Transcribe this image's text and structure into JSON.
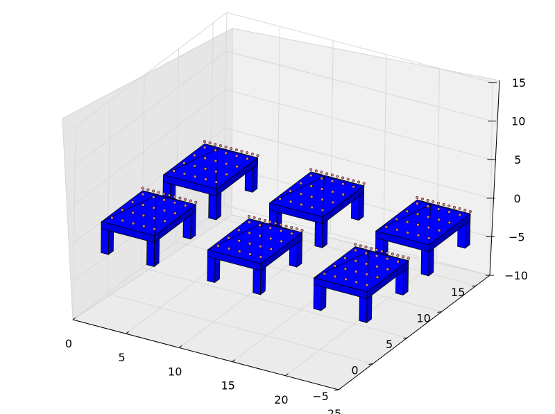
{
  "chart_data": {
    "type": "surface3d",
    "title": "",
    "xlabel": "",
    "ylabel": "",
    "zlabel": "",
    "xlim": [
      0,
      25
    ],
    "ylim": [
      -5,
      17
    ],
    "zlim": [
      -10,
      15
    ],
    "x_ticks": [
      "0",
      "5",
      "10",
      "15",
      "20",
      "25"
    ],
    "y_ticks": [
      "−5",
      "0",
      "5",
      "10",
      "15"
    ],
    "z_ticks": [
      "−10",
      "−5",
      "0",
      "5",
      "10",
      "15"
    ],
    "grid": true,
    "surface_color": "#0000ff",
    "point_color": "#e08080",
    "tables": [
      {
        "x": 2.5,
        "y": 11,
        "z_top": 0,
        "z_leg_bottom": -4
      },
      {
        "x": 2.5,
        "y": 2,
        "z_top": 0,
        "z_leg_bottom": -4
      },
      {
        "x": 12.5,
        "y": 11,
        "z_top": 0,
        "z_leg_bottom": -4
      },
      {
        "x": 12.5,
        "y": 2,
        "z_top": 0,
        "z_leg_bottom": -4
      },
      {
        "x": 22.5,
        "y": 11,
        "z_top": 0,
        "z_leg_bottom": -4
      },
      {
        "x": 22.5,
        "y": 2,
        "z_top": 0,
        "z_leg_bottom": -4
      }
    ]
  }
}
